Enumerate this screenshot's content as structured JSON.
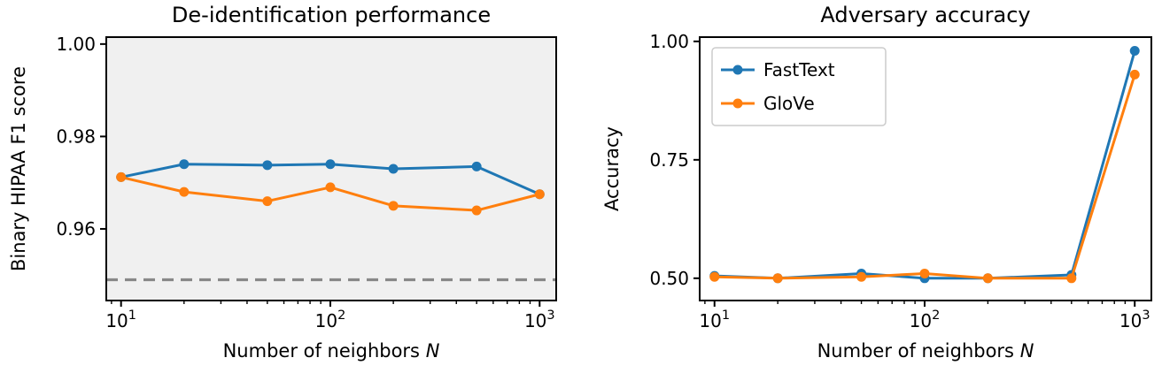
{
  "figure": {
    "description": "Two-panel line figure comparing FastText and GloVe embeddings",
    "accent_blue": "#1f77b4",
    "accent_orange": "#ff7f0e",
    "baseline_gray": "#888888"
  },
  "chart_data": [
    {
      "type": "line",
      "title": "De-identification performance",
      "xlabel": "Number of neighbors N",
      "ylabel": "Binary HIPAA F1 score",
      "xscale": "log",
      "xlim": [
        8.5,
        1200
      ],
      "ylim": [
        0.9445,
        1.0015
      ],
      "xticks": [
        10,
        100,
        1000
      ],
      "xtick_labels": [
        "10^1",
        "10^2",
        "10^3"
      ],
      "yticks": [
        0.96,
        0.98,
        1.0
      ],
      "ytick_labels": [
        "0.96",
        "0.98",
        "1.00"
      ],
      "x": [
        10,
        20,
        50,
        100,
        200,
        500,
        1000
      ],
      "series": [
        {
          "name": "FastText",
          "color": "#1f77b4",
          "values": [
            0.9712,
            0.974,
            0.9738,
            0.974,
            0.973,
            0.9735,
            0.9675
          ]
        },
        {
          "name": "GloVe",
          "color": "#ff7f0e",
          "values": [
            0.9712,
            0.968,
            0.966,
            0.969,
            0.965,
            0.964,
            0.9675
          ]
        }
      ],
      "hline": {
        "y": 0.949,
        "color": "#888888",
        "style": "dashed"
      },
      "plot_bg": "#f0f0f0",
      "grid": false,
      "legend": null
    },
    {
      "type": "line",
      "title": "Adversary accuracy",
      "xlabel": "Number of neighbors N",
      "ylabel": "Accuracy",
      "xscale": "log",
      "xlim": [
        8.5,
        1200
      ],
      "ylim": [
        0.453,
        1.009
      ],
      "xticks": [
        10,
        100,
        1000
      ],
      "xtick_labels": [
        "10^1",
        "10^2",
        "10^3"
      ],
      "yticks": [
        0.5,
        0.75,
        1.0
      ],
      "ytick_labels": [
        "0.50",
        "0.75",
        "1.00"
      ],
      "x": [
        10,
        20,
        50,
        100,
        200,
        500,
        1000
      ],
      "series": [
        {
          "name": "FastText",
          "color": "#1f77b4",
          "values": [
            0.505,
            0.5,
            0.51,
            0.5,
            0.5,
            0.507,
            0.98
          ]
        },
        {
          "name": "GloVe",
          "color": "#ff7f0e",
          "values": [
            0.503,
            0.5,
            0.503,
            0.51,
            0.5,
            0.5,
            0.93
          ]
        }
      ],
      "hline": null,
      "plot_bg": "#ffffff",
      "grid": false,
      "legend": {
        "position": "upper-left",
        "entries": [
          "FastText",
          "GloVe"
        ]
      }
    }
  ]
}
